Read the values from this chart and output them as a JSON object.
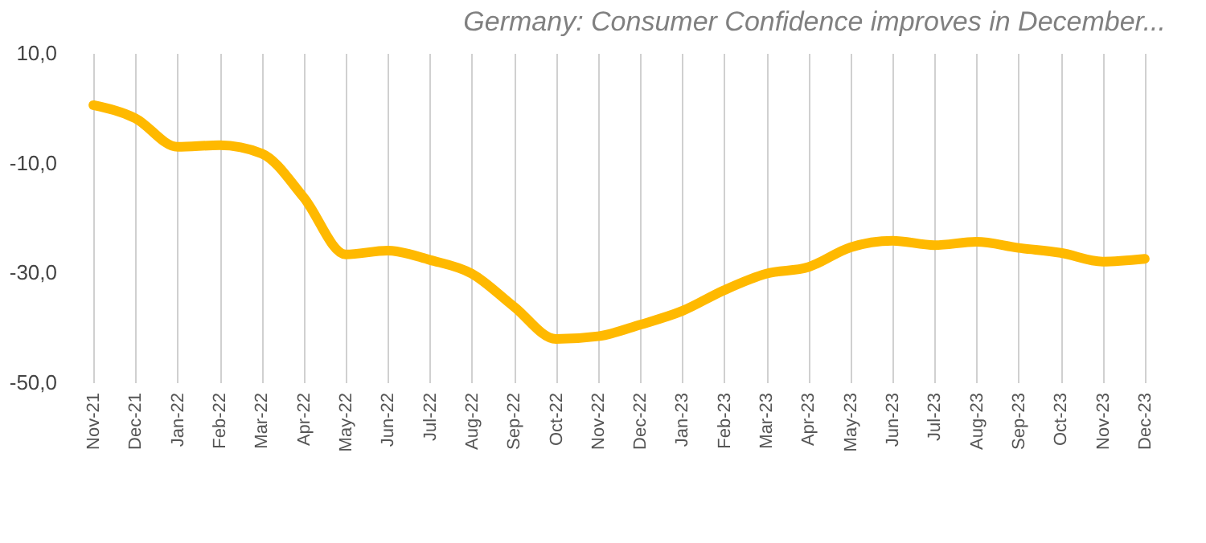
{
  "chart_data": {
    "type": "line",
    "title": "Germany: Consumer Confidence improves in December...",
    "categories": [
      "Nov-21",
      "Dec-21",
      "Jan-22",
      "Feb-22",
      "Mar-22",
      "Apr-22",
      "May-22",
      "Jun-22",
      "Jul-22",
      "Aug-22",
      "Sep-22",
      "Oct-22",
      "Nov-22",
      "Dec-22",
      "Jan-23",
      "Feb-23",
      "Mar-23",
      "Apr-23",
      "May-23",
      "Jun-23",
      "Jul-23",
      "Aug-23",
      "Sep-23",
      "Oct-23",
      "Nov-23",
      "Dec-23"
    ],
    "series": [
      {
        "color": "#ffb900",
        "values": [
          0.5,
          -1.9,
          -7.1,
          -6.8,
          -8.3,
          -16.3,
          -26.7,
          -26.0,
          -27.7,
          -30.2,
          -36.2,
          -42.1,
          -41.6,
          -39.5,
          -37.0,
          -33.2,
          -30.2,
          -29.0,
          -25.4,
          -24.2,
          -25.0,
          -24.4,
          -25.5,
          -26.4,
          -28.0,
          -27.5
        ]
      }
    ],
    "ylim": [
      -50,
      10
    ],
    "yticks": [
      {
        "value": -50,
        "label": "-50,0"
      },
      {
        "value": -30,
        "label": "-30,0"
      },
      {
        "value": -10,
        "label": "-10,0"
      },
      {
        "value": 10,
        "label": "10,0"
      }
    ],
    "grid": "x",
    "legend": false,
    "marker": "none",
    "line_style": "solid"
  }
}
